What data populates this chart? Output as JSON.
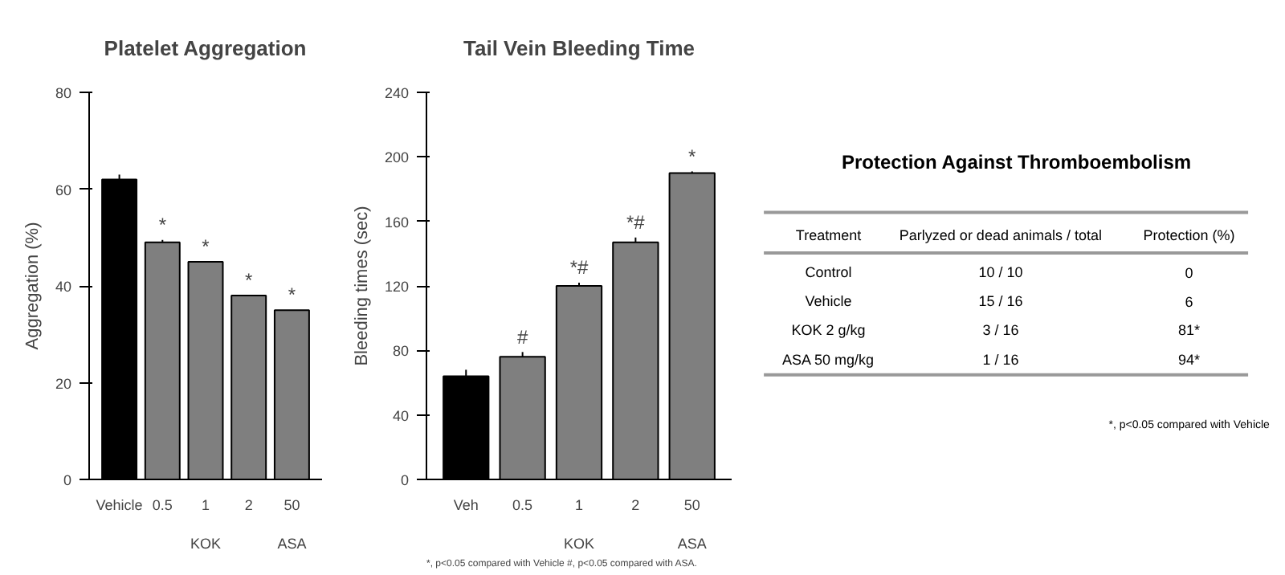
{
  "chart_data": [
    {
      "type": "bar",
      "title": "Platelet Aggregation",
      "ylabel": "Aggregation (%)",
      "categories": [
        "Vehicle",
        "0.5",
        "1",
        "2",
        "50"
      ],
      "values": [
        62,
        49,
        45,
        38,
        35
      ],
      "errors": [
        1,
        0.5,
        null,
        null,
        null
      ],
      "colors": [
        "#000000",
        "#7f7f7f",
        "#7f7f7f",
        "#7f7f7f",
        "#7f7f7f"
      ],
      "ylim": [
        0,
        80
      ],
      "yticks": [
        0,
        20,
        40,
        60,
        80
      ],
      "grid": false,
      "value_labels": [
        null,
        "*",
        "*",
        "*",
        "*"
      ],
      "annotations": [
        "KOK",
        "ASA"
      ]
    },
    {
      "type": "bar",
      "title": "Tail Vein Bleeding Time",
      "ylabel": "Bleeding times (sec)",
      "categories": [
        "Veh",
        "0.5",
        "1",
        "2",
        "50"
      ],
      "values": [
        64,
        76,
        120,
        147,
        190
      ],
      "errors": [
        4,
        3,
        2,
        3,
        1
      ],
      "colors": [
        "#000000",
        "#7f7f7f",
        "#7f7f7f",
        "#7f7f7f",
        "#7f7f7f"
      ],
      "ylim": [
        0,
        240
      ],
      "yticks": [
        0,
        40,
        80,
        120,
        160,
        200,
        240
      ],
      "grid": false,
      "value_labels": [
        null,
        "#",
        "*#",
        "*#",
        "*"
      ],
      "annotations": [
        "KOK",
        "ASA",
        "*, p<0.05 compared with Vehicle #, p<0.05 compared with ASA."
      ]
    },
    {
      "type": "other",
      "title": "Protection Against Thromboembolism",
      "categories": [
        "Treatment",
        "Parlyzed or dead animals / total",
        "Protection (%)"
      ],
      "y_categories": [
        "Control",
        "Vehicle",
        "KOK 2 g/kg",
        "ASA 50 mg/kg"
      ],
      "cell_labels": [
        [
          "10 / 10",
          "0"
        ],
        [
          "15 / 16",
          "6"
        ],
        [
          "3 / 16",
          "81*"
        ],
        [
          "1 / 16",
          "94*"
        ]
      ],
      "annotations": [
        "*, p<0.05 compared with Vehicle"
      ]
    }
  ]
}
